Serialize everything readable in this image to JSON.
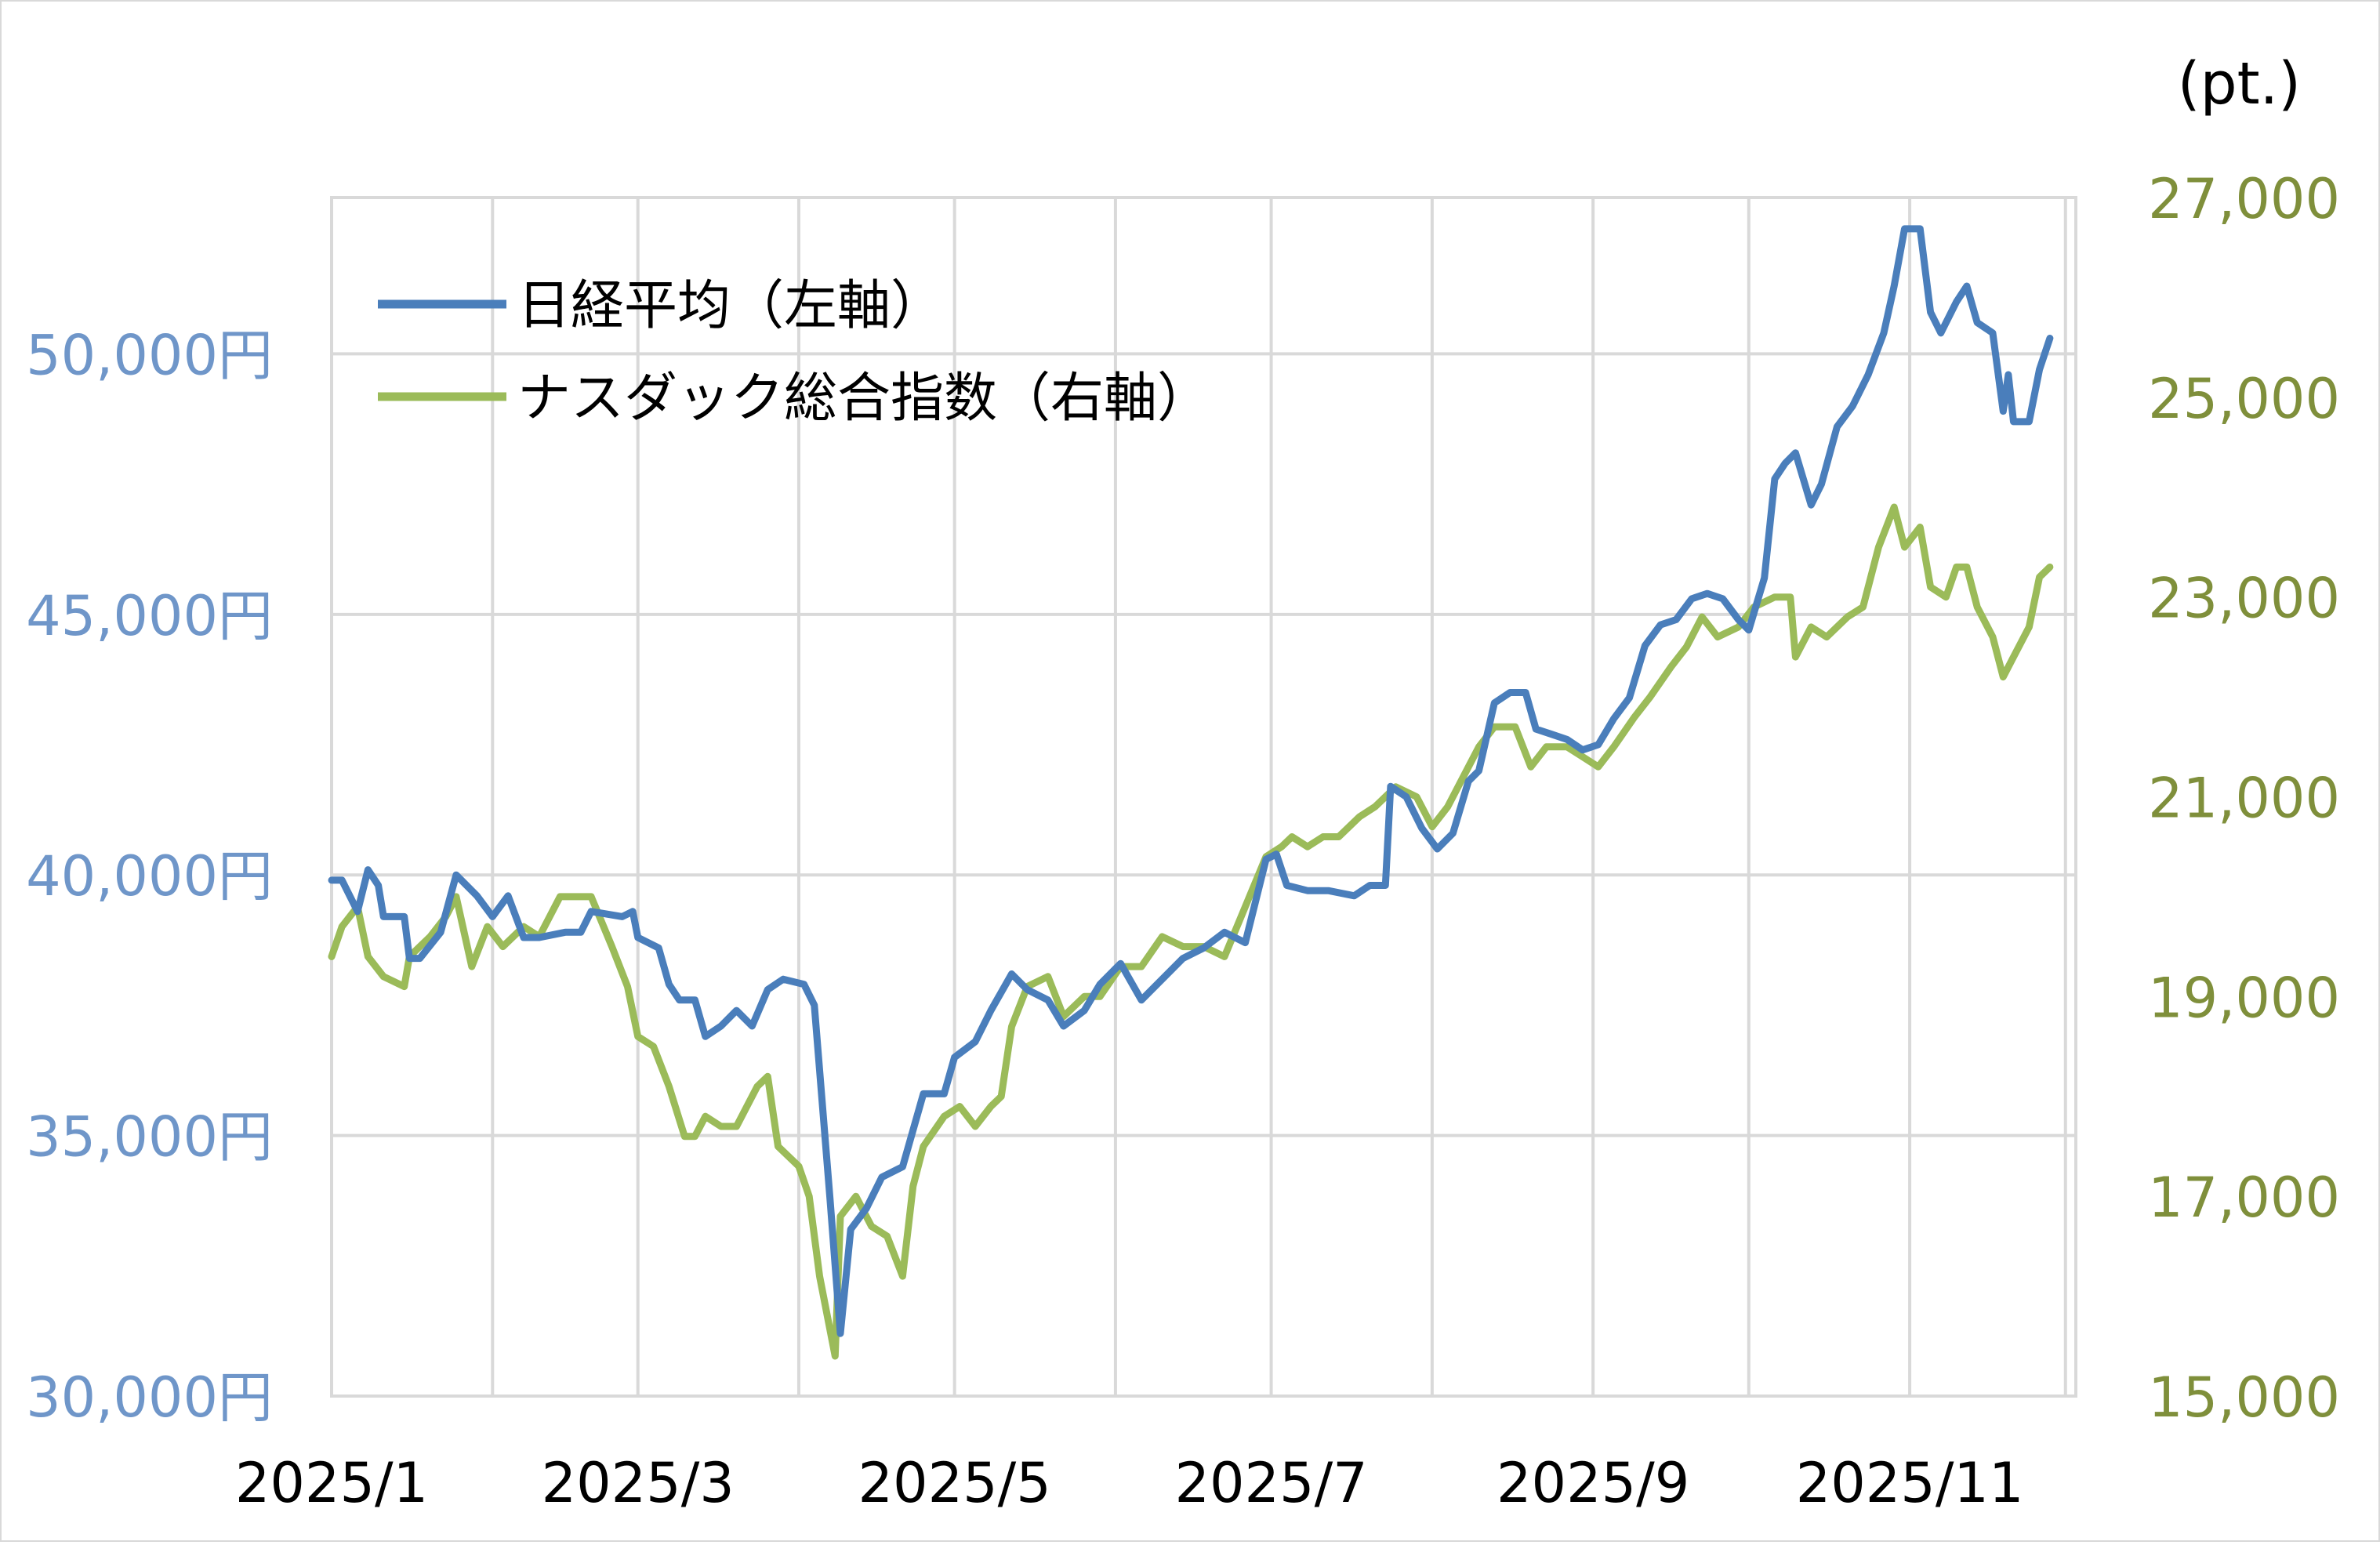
{
  "chart_data": {
    "type": "line",
    "unit_label_right": "(pt.)",
    "x_ticks": [
      "2025/1",
      "2025/3",
      "2025/5",
      "2025/7",
      "2025/9",
      "2025/11"
    ],
    "left_axis": {
      "range": [
        30000,
        53000
      ],
      "ticks": [
        {
          "value": 30000,
          "label": "30,000円"
        },
        {
          "value": 35000,
          "label": "35,000円"
        },
        {
          "value": 40000,
          "label": "40,000円"
        },
        {
          "value": 45000,
          "label": "45,000円"
        },
        {
          "value": 50000,
          "label": "50,000円"
        }
      ]
    },
    "right_axis": {
      "range": [
        15000,
        27000
      ],
      "ticks": [
        {
          "value": 15000,
          "label": "15,000"
        },
        {
          "value": 17000,
          "label": "17,000"
        },
        {
          "value": 19000,
          "label": "19,000"
        },
        {
          "value": 21000,
          "label": "21,000"
        },
        {
          "value": 23000,
          "label": "23,000"
        },
        {
          "value": 25000,
          "label": "25,000"
        },
        {
          "value": 27000,
          "label": "27,000"
        }
      ]
    },
    "grid": true,
    "legend_position": "top-left",
    "series": [
      {
        "name": "日経平均（左軸）",
        "axis": "left",
        "color": "#4a7ebb",
        "points": [
          [
            "2025-01-01",
            39900
          ],
          [
            "2025-01-03",
            39900
          ],
          [
            "2025-01-06",
            39300
          ],
          [
            "2025-01-08",
            40100
          ],
          [
            "2025-01-10",
            39800
          ],
          [
            "2025-01-11",
            39200
          ],
          [
            "2025-01-15",
            39200
          ],
          [
            "2025-01-16",
            38400
          ],
          [
            "2025-01-18",
            38400
          ],
          [
            "2025-01-22",
            38900
          ],
          [
            "2025-01-25",
            40000
          ],
          [
            "2025-01-29",
            39600
          ],
          [
            "2025-02-01",
            39200
          ],
          [
            "2025-02-04",
            39600
          ],
          [
            "2025-02-07",
            38800
          ],
          [
            "2025-02-10",
            38800
          ],
          [
            "2025-02-15",
            38900
          ],
          [
            "2025-02-18",
            38900
          ],
          [
            "2025-02-20",
            39300
          ],
          [
            "2025-02-26",
            39200
          ],
          [
            "2025-02-28",
            39300
          ],
          [
            "2025-03-01",
            38800
          ],
          [
            "2025-03-05",
            38600
          ],
          [
            "2025-03-07",
            37900
          ],
          [
            "2025-03-09",
            37600
          ],
          [
            "2025-03-12",
            37600
          ],
          [
            "2025-03-14",
            36900
          ],
          [
            "2025-03-17",
            37100
          ],
          [
            "2025-03-20",
            37400
          ],
          [
            "2025-03-23",
            37100
          ],
          [
            "2025-03-26",
            37800
          ],
          [
            "2025-03-29",
            38000
          ],
          [
            "2025-04-02",
            37900
          ],
          [
            "2025-04-04",
            37500
          ],
          [
            "2025-04-07",
            33800
          ],
          [
            "2025-04-09",
            31200
          ],
          [
            "2025-04-11",
            33200
          ],
          [
            "2025-04-14",
            33600
          ],
          [
            "2025-04-17",
            34200
          ],
          [
            "2025-04-21",
            34400
          ],
          [
            "2025-04-25",
            35800
          ],
          [
            "2025-04-29",
            35800
          ],
          [
            "2025-05-01",
            36500
          ],
          [
            "2025-05-05",
            36800
          ],
          [
            "2025-05-08",
            37400
          ],
          [
            "2025-05-12",
            38100
          ],
          [
            "2025-05-15",
            37800
          ],
          [
            "2025-05-19",
            37600
          ],
          [
            "2025-05-22",
            37100
          ],
          [
            "2025-05-26",
            37400
          ],
          [
            "2025-05-29",
            37900
          ],
          [
            "2025-06-02",
            38300
          ],
          [
            "2025-06-06",
            37600
          ],
          [
            "2025-06-10",
            38000
          ],
          [
            "2025-06-14",
            38400
          ],
          [
            "2025-06-18",
            38600
          ],
          [
            "2025-06-22",
            38900
          ],
          [
            "2025-06-26",
            38700
          ],
          [
            "2025-06-30",
            40300
          ],
          [
            "2025-07-02",
            40400
          ],
          [
            "2025-07-04",
            39800
          ],
          [
            "2025-07-08",
            39700
          ],
          [
            "2025-07-12",
            39700
          ],
          [
            "2025-07-17",
            39600
          ],
          [
            "2025-07-20",
            39800
          ],
          [
            "2025-07-23",
            39800
          ],
          [
            "2025-07-24",
            41700
          ],
          [
            "2025-07-27",
            41500
          ],
          [
            "2025-07-30",
            40900
          ],
          [
            "2025-08-02",
            40500
          ],
          [
            "2025-08-05",
            40800
          ],
          [
            "2025-08-08",
            41800
          ],
          [
            "2025-08-10",
            42000
          ],
          [
            "2025-08-13",
            43300
          ],
          [
            "2025-08-16",
            43500
          ],
          [
            "2025-08-19",
            43500
          ],
          [
            "2025-08-21",
            42800
          ],
          [
            "2025-08-24",
            42700
          ],
          [
            "2025-08-27",
            42600
          ],
          [
            "2025-08-30",
            42400
          ],
          [
            "2025-09-02",
            42500
          ],
          [
            "2025-09-05",
            43000
          ],
          [
            "2025-09-08",
            43400
          ],
          [
            "2025-09-11",
            44400
          ],
          [
            "2025-09-14",
            44800
          ],
          [
            "2025-09-17",
            44900
          ],
          [
            "2025-09-20",
            45300
          ],
          [
            "2025-09-23",
            45400
          ],
          [
            "2025-09-26",
            45300
          ],
          [
            "2025-09-29",
            44900
          ],
          [
            "2025-10-01",
            44700
          ],
          [
            "2025-10-04",
            45700
          ],
          [
            "2025-10-06",
            47600
          ],
          [
            "2025-10-08",
            47900
          ],
          [
            "2025-10-10",
            48100
          ],
          [
            "2025-10-13",
            47100
          ],
          [
            "2025-10-15",
            47500
          ],
          [
            "2025-10-18",
            48600
          ],
          [
            "2025-10-21",
            49000
          ],
          [
            "2025-10-24",
            49600
          ],
          [
            "2025-10-27",
            50400
          ],
          [
            "2025-10-29",
            51300
          ],
          [
            "2025-10-31",
            52400
          ],
          [
            "2025-11-03",
            52400
          ],
          [
            "2025-11-05",
            50800
          ],
          [
            "2025-11-07",
            50400
          ],
          [
            "2025-11-10",
            51000
          ],
          [
            "2025-11-12",
            51300
          ],
          [
            "2025-11-14",
            50600
          ],
          [
            "2025-11-17",
            50400
          ],
          [
            "2025-11-19",
            48900
          ],
          [
            "2025-11-20",
            49600
          ],
          [
            "2025-11-21",
            48700
          ],
          [
            "2025-11-24",
            48700
          ],
          [
            "2025-11-26",
            49700
          ],
          [
            "2025-11-28",
            50300
          ]
        ]
      },
      {
        "name": "ナスダック総合指数（右軸）",
        "axis": "right",
        "color": "#9bbb59",
        "points": [
          [
            "2025-01-01",
            19400
          ],
          [
            "2025-01-03",
            19700
          ],
          [
            "2025-01-06",
            19900
          ],
          [
            "2025-01-08",
            19400
          ],
          [
            "2025-01-11",
            19200
          ],
          [
            "2025-01-15",
            19100
          ],
          [
            "2025-01-16",
            19400
          ],
          [
            "2025-01-20",
            19600
          ],
          [
            "2025-01-23",
            19800
          ],
          [
            "2025-01-25",
            20000
          ],
          [
            "2025-01-28",
            19300
          ],
          [
            "2025-01-31",
            19700
          ],
          [
            "2025-02-03",
            19500
          ],
          [
            "2025-02-07",
            19700
          ],
          [
            "2025-02-10",
            19600
          ],
          [
            "2025-02-14",
            20000
          ],
          [
            "2025-02-18",
            20000
          ],
          [
            "2025-02-20",
            20000
          ],
          [
            "2025-02-24",
            19500
          ],
          [
            "2025-02-27",
            19100
          ],
          [
            "2025-03-01",
            18600
          ],
          [
            "2025-03-04",
            18500
          ],
          [
            "2025-03-07",
            18100
          ],
          [
            "2025-03-10",
            17600
          ],
          [
            "2025-03-12",
            17600
          ],
          [
            "2025-03-14",
            17800
          ],
          [
            "2025-03-17",
            17700
          ],
          [
            "2025-03-20",
            17700
          ],
          [
            "2025-03-24",
            18100
          ],
          [
            "2025-03-26",
            18200
          ],
          [
            "2025-03-28",
            17500
          ],
          [
            "2025-04-01",
            17300
          ],
          [
            "2025-04-03",
            17000
          ],
          [
            "2025-04-05",
            16200
          ],
          [
            "2025-04-08",
            15400
          ],
          [
            "2025-04-09",
            16800
          ],
          [
            "2025-04-12",
            17000
          ],
          [
            "2025-04-15",
            16700
          ],
          [
            "2025-04-18",
            16600
          ],
          [
            "2025-04-21",
            16200
          ],
          [
            "2025-04-23",
            17100
          ],
          [
            "2025-04-25",
            17500
          ],
          [
            "2025-04-29",
            17800
          ],
          [
            "2025-05-02",
            17900
          ],
          [
            "2025-05-05",
            17700
          ],
          [
            "2025-05-08",
            17900
          ],
          [
            "2025-05-10",
            18000
          ],
          [
            "2025-05-12",
            18700
          ],
          [
            "2025-05-15",
            19100
          ],
          [
            "2025-05-19",
            19200
          ],
          [
            "2025-05-22",
            18800
          ],
          [
            "2025-05-26",
            19000
          ],
          [
            "2025-05-29",
            19000
          ],
          [
            "2025-06-02",
            19300
          ],
          [
            "2025-06-06",
            19300
          ],
          [
            "2025-06-10",
            19600
          ],
          [
            "2025-06-14",
            19500
          ],
          [
            "2025-06-18",
            19500
          ],
          [
            "2025-06-22",
            19400
          ],
          [
            "2025-06-26",
            19900
          ],
          [
            "2025-06-30",
            20400
          ],
          [
            "2025-07-03",
            20500
          ],
          [
            "2025-07-05",
            20600
          ],
          [
            "2025-07-08",
            20500
          ],
          [
            "2025-07-11",
            20600
          ],
          [
            "2025-07-14",
            20600
          ],
          [
            "2025-07-18",
            20800
          ],
          [
            "2025-07-21",
            20900
          ],
          [
            "2025-07-25",
            21100
          ],
          [
            "2025-07-29",
            21000
          ],
          [
            "2025-08-01",
            20700
          ],
          [
            "2025-08-04",
            20900
          ],
          [
            "2025-08-07",
            21200
          ],
          [
            "2025-08-10",
            21500
          ],
          [
            "2025-08-13",
            21700
          ],
          [
            "2025-08-17",
            21700
          ],
          [
            "2025-08-20",
            21300
          ],
          [
            "2025-08-23",
            21500
          ],
          [
            "2025-08-27",
            21500
          ],
          [
            "2025-08-30",
            21400
          ],
          [
            "2025-09-02",
            21300
          ],
          [
            "2025-09-05",
            21500
          ],
          [
            "2025-09-09",
            21800
          ],
          [
            "2025-09-12",
            22000
          ],
          [
            "2025-09-16",
            22300
          ],
          [
            "2025-09-19",
            22500
          ],
          [
            "2025-09-22",
            22800
          ],
          [
            "2025-09-25",
            22600
          ],
          [
            "2025-09-29",
            22700
          ],
          [
            "2025-10-02",
            22900
          ],
          [
            "2025-10-06",
            23000
          ],
          [
            "2025-10-09",
            23000
          ],
          [
            "2025-10-10",
            22400
          ],
          [
            "2025-10-13",
            22700
          ],
          [
            "2025-10-16",
            22600
          ],
          [
            "2025-10-20",
            22800
          ],
          [
            "2025-10-23",
            22900
          ],
          [
            "2025-10-26",
            23500
          ],
          [
            "2025-10-29",
            23900
          ],
          [
            "2025-10-31",
            23500
          ],
          [
            "2025-11-03",
            23700
          ],
          [
            "2025-11-05",
            23100
          ],
          [
            "2025-11-08",
            23000
          ],
          [
            "2025-11-10",
            23300
          ],
          [
            "2025-11-12",
            23300
          ],
          [
            "2025-11-14",
            22900
          ],
          [
            "2025-11-17",
            22600
          ],
          [
            "2025-11-19",
            22200
          ],
          [
            "2025-11-21",
            22400
          ],
          [
            "2025-11-24",
            22700
          ],
          [
            "2025-11-26",
            23200
          ],
          [
            "2025-11-28",
            23300
          ]
        ]
      }
    ]
  }
}
